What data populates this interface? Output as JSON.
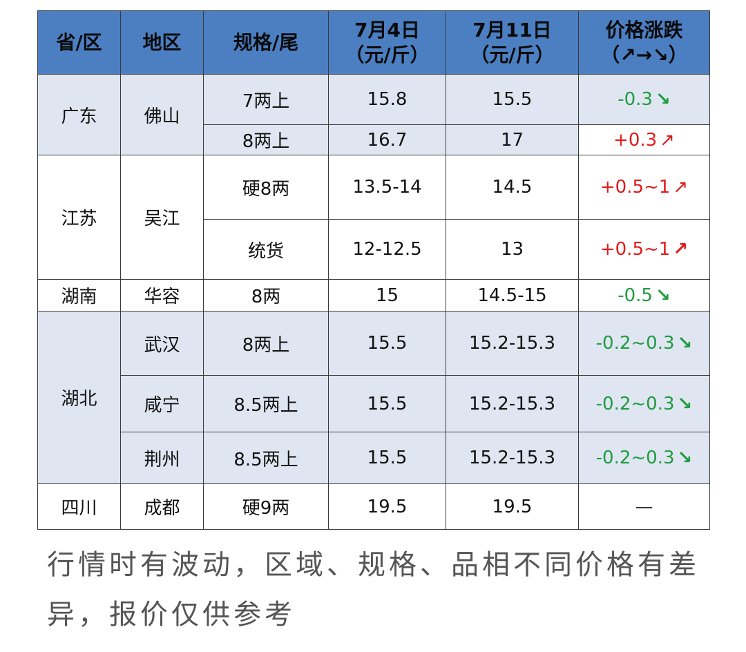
{
  "colors": {
    "header_bg": "#4b7fc2",
    "band_light": "#dfe6f2",
    "band_white": "#ffffff",
    "up": "#e11b1b",
    "down": "#1f9c3f"
  },
  "header": {
    "province": "省/区",
    "region": "地区",
    "spec": "规格/尾",
    "date1_line1": "7月4日",
    "date1_line2": "（元/斤）",
    "date2_line1": "7月11日",
    "date2_line2": "（元/斤）",
    "change_line1": "价格涨跌",
    "change_line2": "（↗→↘）"
  },
  "rows": {
    "guangdong": {
      "province": "广东",
      "region": "佛山",
      "r1": {
        "spec": "7两上",
        "p1": "15.8",
        "p2": "15.5",
        "change": "-0.3",
        "arrow": "↘",
        "arrow_icon": "down-right-arrow-icon"
      },
      "r2": {
        "spec": "8两上",
        "p1": "16.7",
        "p2": "17",
        "change": "+0.3",
        "arrow": "↗",
        "arrow_icon": "up-right-arrow-icon"
      }
    },
    "jiangsu": {
      "province": "江苏",
      "region": "吴江",
      "r1": {
        "spec": "硬8两",
        "p1": "13.5-14",
        "p2": "14.5",
        "change": "+0.5~1",
        "arrow": "↗",
        "arrow_icon": "up-right-arrow-icon"
      },
      "r2": {
        "spec": "统货",
        "p1": "12-12.5",
        "p2": "13",
        "change": "+0.5~1",
        "arrow": "↗",
        "arrow_icon": "up-right-arrow-icon"
      }
    },
    "hunan": {
      "province": "湖南",
      "region": "华容",
      "spec": "8两",
      "p1": "15",
      "p2": "14.5-15",
      "change": "-0.5",
      "arrow": "↘",
      "arrow_icon": "down-right-arrow-icon"
    },
    "hubei": {
      "province": "湖北",
      "wuhan": {
        "region": "武汉",
        "spec": "8两上",
        "p1": "15.5",
        "p2": "15.2-15.3",
        "change": "-0.2~0.3",
        "arrow": "↘",
        "arrow_icon": "down-right-arrow-icon"
      },
      "xianning": {
        "region": "咸宁",
        "spec": "8.5两上",
        "p1": "15.5",
        "p2": "15.2-15.3",
        "change": "-0.2~0.3",
        "arrow": "↘",
        "arrow_icon": "down-right-arrow-icon"
      },
      "jingzhou": {
        "region": "荆州",
        "spec": "8.5两上",
        "p1": "15.5",
        "p2": "15.2-15.3",
        "change": "-0.2~0.3",
        "arrow": "↘",
        "arrow_icon": "down-right-arrow-icon"
      }
    },
    "sichuan": {
      "province": "四川",
      "region": "成都",
      "spec": "硬9两",
      "p1": "19.5",
      "p2": "19.5",
      "change": "—"
    }
  },
  "footnote": "行情时有波动，区域、规格、品相不同价格有差异，报价仅供参考"
}
